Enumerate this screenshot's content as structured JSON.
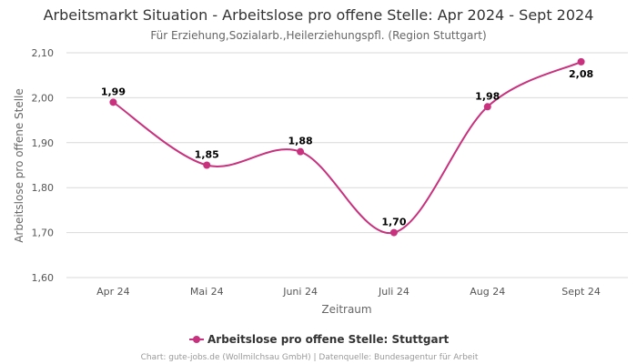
{
  "chart_data": {
    "type": "line",
    "title": "Arbeitsmarkt Situation - Arbeitslose pro offene Stelle: Apr 2024 - Sept 2024",
    "subtitle": "Für Erziehung,Sozialarb.,Heilerziehungspfl. (Region Stuttgart)",
    "xlabel": "Zeitraum",
    "ylabel": "Arbeitslose pro offene Stelle",
    "categories": [
      "Apr 24",
      "Mai 24",
      "Juni 24",
      "Juli 24",
      "Aug 24",
      "Sept 24"
    ],
    "series": [
      {
        "name": "Arbeitslose pro offene Stelle: Stuttgart",
        "values": [
          1.99,
          1.85,
          1.88,
          1.7,
          1.98,
          2.08
        ],
        "value_labels": [
          "1,99",
          "1,85",
          "1,88",
          "1,70",
          "1,98",
          "2,08"
        ],
        "color": "#c8317d"
      }
    ],
    "ylim": [
      1.6,
      2.1
    ],
    "yticks": [
      1.6,
      1.7,
      1.8,
      1.9,
      2.0,
      2.1
    ],
    "ytick_labels": [
      "1,60",
      "1,70",
      "1,80",
      "1,90",
      "2,00",
      "2,10"
    ],
    "grid": true,
    "legend": "bottom-center",
    "credits": "Chart: gute-jobs.de (Wollmilchsau GmbH) | Datenquelle: Bundesagentur für Arbeit"
  }
}
